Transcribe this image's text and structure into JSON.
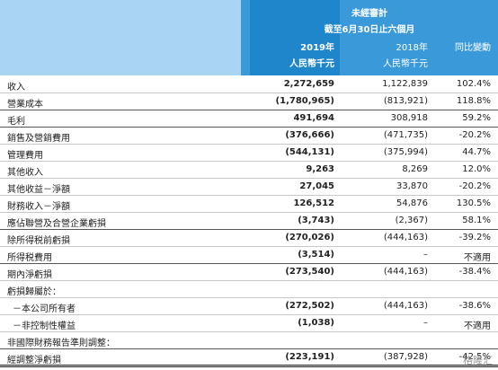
{
  "header": {
    "line1": "未經審計",
    "line2": "截至6月30日止六個月",
    "columns": [
      {
        "year": "2019年",
        "unit": "人民幣千元"
      },
      {
        "year": "2018年",
        "unit": "人民幣千元"
      },
      {
        "year": "同比變動"
      }
    ]
  },
  "table": {
    "rows": [
      {
        "label": "收入",
        "cells": [
          "2,272,659",
          "1,122,839",
          "102.4%"
        ]
      },
      {
        "label": "營業成本",
        "cells": [
          "(1,780,965)",
          "(813,921)",
          "118.8%"
        ]
      },
      {
        "label": "毛利",
        "cells": [
          "491,694",
          "308,918",
          "59.2%"
        ]
      },
      {
        "label": "銷售及營銷費用",
        "cells": [
          "(376,666)",
          "(471,735)",
          "-20.2%"
        ]
      },
      {
        "label": "管理費用",
        "cells": [
          "(544,131)",
          "(375,994)",
          "44.7%"
        ]
      },
      {
        "label": "其他收入",
        "cells": [
          "9,263",
          "8,269",
          "12.0%"
        ]
      },
      {
        "label": "其他收益－淨額",
        "cells": [
          "27,045",
          "33,870",
          "-20.2%"
        ]
      },
      {
        "label": "財務收入－淨額",
        "cells": [
          "126,512",
          "54,876",
          "130.5%"
        ]
      },
      {
        "label": "應佔聯營及合營企業虧損",
        "cells": [
          "(3,743)",
          "(2,367)",
          "58.1%"
        ]
      },
      {
        "label": "除所得税前虧損",
        "cells": [
          "(270,026)",
          "(444,163)",
          "-39.2%"
        ]
      },
      {
        "label": "所得税費用",
        "cells": [
          "(3,514)",
          "–",
          "不適用"
        ]
      },
      {
        "label": "期內淨虧損",
        "cells": [
          "(273,540)",
          "(444,163)",
          "-38.4%"
        ]
      },
      {
        "label": "虧損歸屬於："
      },
      {
        "label": "－本公司所有者",
        "cells": [
          "(272,502)",
          "(444,163)",
          "-38.6%"
        ]
      },
      {
        "label": "－非控制性權益",
        "cells": [
          "(1,038)",
          "–",
          "不適用"
        ]
      },
      {
        "label": "非國際財務報告準則調整："
      },
      {
        "label": "經調整淨虧損",
        "cells": [
          "(223,191)",
          "(387,928)",
          "-42.5%"
        ]
      }
    ]
  },
  "watermark": "格隆汇"
}
